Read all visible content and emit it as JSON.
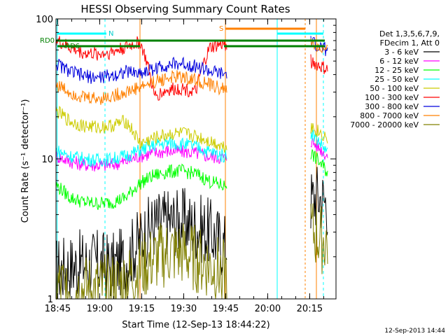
{
  "chart_data": {
    "type": "line",
    "title": "HESSI Observing Summary Count Rates",
    "xlabel": "Start Time (12-Sep-13 18:44:22)",
    "ylabel": "Count Rate (s⁻¹ detector⁻¹)",
    "yscale": "log",
    "ylim": [
      1,
      100
    ],
    "xlim_minutes_after_start": [
      0,
      100
    ],
    "x_tick_labels": [
      "18:45",
      "19:00",
      "19:15",
      "19:30",
      "19:45",
      "20:00",
      "20:15"
    ],
    "x_tick_minutes": [
      0.6,
      15.6,
      30.6,
      45.6,
      60.6,
      75.6,
      90.6
    ],
    "y_tick_labels": [
      "1",
      "10",
      "100"
    ],
    "y_tick_values": [
      1,
      10,
      100
    ],
    "legend_title": [
      "Det 1,3,5,6,7,9,",
      "FDecim 1, Att 0"
    ],
    "legend_position": "right",
    "footer_stamp": "12-Sep-2013 14:44",
    "annotations": {
      "rdo_label": "RD0",
      "rd6_label": "RD6",
      "n_label": "N",
      "s_label": "S"
    },
    "data_gaps_minutes": [
      [
        61,
        91
      ]
    ],
    "series": [
      {
        "name": "3 - 6 keV",
        "color": "#000000",
        "x": [
          0,
          5,
          10,
          15,
          20,
          25,
          30,
          35,
          40,
          45,
          50,
          55,
          60,
          91,
          93,
          95,
          97
        ],
        "y": [
          1.6,
          1.7,
          1.8,
          1.8,
          1.7,
          1.9,
          2.6,
          3.4,
          3.6,
          3.6,
          3.3,
          3.0,
          2.4,
          5.0,
          5.5,
          5.2,
          4.8
        ]
      },
      {
        "name": "6 - 12 keV",
        "color": "#ff00ff",
        "x": [
          0,
          5,
          10,
          15,
          20,
          25,
          30,
          35,
          40,
          45,
          50,
          55,
          60,
          91,
          93,
          95,
          97
        ],
        "y": [
          10.5,
          9.6,
          9.1,
          9.0,
          9.1,
          9.6,
          10.5,
          11.0,
          11.4,
          11.3,
          11.0,
          10.4,
          10.2,
          13.5,
          12.5,
          11.5,
          10.5
        ]
      },
      {
        "name": "12 - 25 keV",
        "color": "#00ff00",
        "x": [
          0,
          5,
          10,
          15,
          20,
          25,
          30,
          35,
          40,
          45,
          50,
          55,
          60,
          91,
          93,
          95,
          97
        ],
        "y": [
          6.5,
          5.3,
          4.9,
          4.8,
          4.9,
          5.3,
          6.7,
          7.6,
          8.1,
          8.2,
          7.8,
          6.9,
          6.4,
          11.0,
          10.0,
          9.0,
          8.0
        ]
      },
      {
        "name": "25 - 50 keV",
        "color": "#00ffff",
        "x": [
          0,
          5,
          10,
          15,
          20,
          25,
          30,
          35,
          40,
          45,
          50,
          55,
          60,
          91,
          93,
          95,
          97
        ],
        "y": [
          11.5,
          10.5,
          10.0,
          9.8,
          10.0,
          10.5,
          11.5,
          12.5,
          13.0,
          12.8,
          12.2,
          11.2,
          10.5,
          15.5,
          14.0,
          12.5,
          11.0
        ]
      },
      {
        "name": "50 - 100 keV",
        "color": "#cccc00",
        "x": [
          0,
          5,
          10,
          15,
          20,
          25,
          30,
          35,
          40,
          45,
          50,
          55,
          60,
          91,
          93,
          95,
          97
        ],
        "y": [
          22,
          18.5,
          17.2,
          16.8,
          17.3,
          18.6,
          12.8,
          14.0,
          15.0,
          15.2,
          14.5,
          13.4,
          12.3,
          17.0,
          16.0,
          15.0,
          14.0
        ]
      },
      {
        "name": "100 - 300 keV",
        "color": "#ff0000",
        "x": [
          0,
          5,
          10,
          15,
          20,
          25,
          30,
          35,
          40,
          45,
          50,
          55,
          60,
          91,
          93,
          95,
          97
        ],
        "y": [
          70,
          62,
          57,
          56,
          58,
          63,
          68,
          28,
          31,
          32,
          30,
          62,
          66,
          50,
          47,
          45,
          43
        ]
      },
      {
        "name": "300 - 800 keV",
        "color": "#0000dd",
        "x": [
          0,
          5,
          10,
          15,
          20,
          25,
          30,
          35,
          40,
          45,
          50,
          55,
          60,
          91,
          93,
          95,
          97
        ],
        "y": [
          48,
          42,
          39,
          38,
          39.5,
          42,
          41,
          44,
          47,
          48,
          46,
          42,
          40,
          68,
          65,
          62,
          60
        ]
      },
      {
        "name": "800 - 7000 keV",
        "color": "#ff8000",
        "x": [
          0,
          5,
          10,
          15,
          20,
          25,
          30,
          35,
          40,
          45,
          50,
          55,
          60,
          91,
          93,
          95,
          97
        ],
        "y": [
          34,
          30,
          27.5,
          27,
          28,
          30,
          32.5,
          35.5,
          38,
          38.5,
          36.5,
          33.5,
          31.5,
          66,
          63,
          60,
          58
        ]
      },
      {
        "name": "7000 - 20000 keV",
        "color": "#808000",
        "x": [
          0,
          5,
          10,
          15,
          20,
          25,
          30,
          35,
          40,
          45,
          50,
          55,
          60,
          91,
          93,
          95,
          97
        ],
        "y": [
          1.2,
          1.15,
          1.15,
          1.15,
          1.2,
          1.3,
          1.6,
          1.9,
          2.1,
          2.1,
          1.9,
          1.7,
          1.5,
          3.0,
          2.8,
          2.6,
          2.5
        ]
      }
    ]
  }
}
